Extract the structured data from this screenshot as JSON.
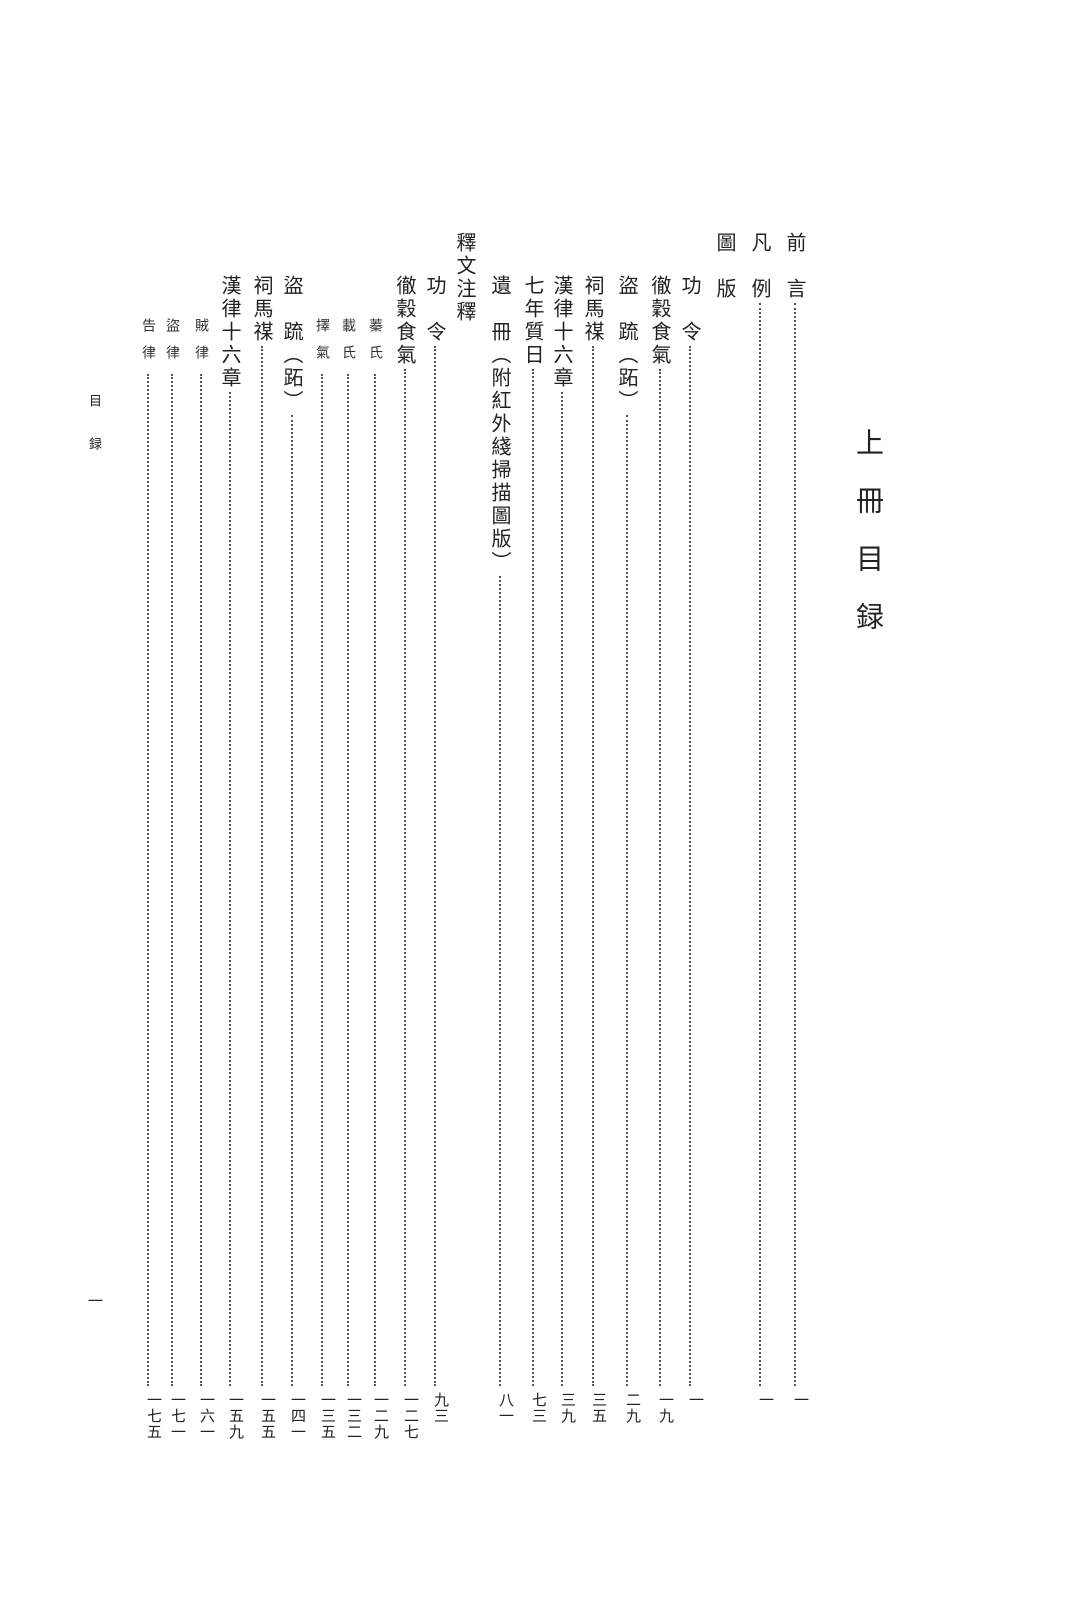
{
  "title": "上冊目録",
  "running_head": "目録",
  "folio": "一",
  "entries": [
    {
      "label": "前　言",
      "level": 1,
      "page": "一"
    },
    {
      "label": "凡　例",
      "level": 1,
      "page": "一"
    },
    {
      "label": "圖　版",
      "level": 1,
      "page": ""
    },
    {
      "label": "功　令",
      "level": 2,
      "page": "一"
    },
    {
      "label": "徹穀食氣",
      "level": 2,
      "page": "一九"
    },
    {
      "label": "盜　䟽（跖）",
      "level": 2,
      "page": "二九"
    },
    {
      "label": "祠馬禖",
      "level": 2,
      "page": "三五"
    },
    {
      "label": "漢律十六章",
      "level": 2,
      "page": "三九"
    },
    {
      "label": "七年質日",
      "level": 2,
      "page": "七三"
    },
    {
      "label": "遺　冊（附紅外綫掃描圖版）",
      "level": 2,
      "page": "八一"
    },
    {
      "label": "釋文注釋",
      "level": 1,
      "page": ""
    },
    {
      "label": "功　令",
      "level": 2,
      "page": "九三"
    },
    {
      "label": "徹穀食氣",
      "level": 2,
      "page": "一二七"
    },
    {
      "label": "蓁氏",
      "level": 3,
      "page": "一二九"
    },
    {
      "label": "載氏",
      "level": 3,
      "page": "一三二"
    },
    {
      "label": "擇氣",
      "level": 3,
      "page": "一三五"
    },
    {
      "label": "盜　䟽（跖）",
      "level": 2,
      "page": "一四一"
    },
    {
      "label": "祠馬禖",
      "level": 2,
      "page": "一五五"
    },
    {
      "label": "漢律十六章",
      "level": 2,
      "page": "一五九"
    },
    {
      "label": "賊律",
      "level": 3,
      "page": "一六一"
    },
    {
      "label": "盜律",
      "level": 3,
      "page": "一七一"
    },
    {
      "label": "告律",
      "level": 3,
      "page": "一七五"
    }
  ]
}
